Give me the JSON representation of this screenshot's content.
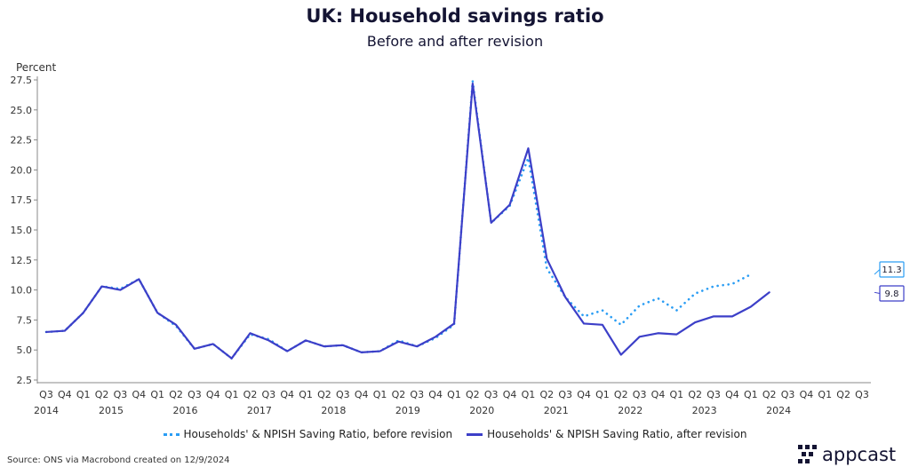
{
  "chart_data": {
    "type": "line",
    "title": "UK: Household savings ratio",
    "subtitle": "Before and after revision",
    "ylabel": "Percent",
    "ylim": [
      2.5,
      27.5
    ],
    "yticks": [
      2.5,
      5.0,
      7.5,
      10.0,
      12.5,
      15.0,
      17.5,
      20.0,
      22.5,
      25.0,
      27.5
    ],
    "quarter_labels": [
      "Q3",
      "Q4",
      "Q1",
      "Q2",
      "Q3",
      "Q4",
      "Q1",
      "Q2",
      "Q3",
      "Q4",
      "Q1",
      "Q2",
      "Q3",
      "Q4",
      "Q1",
      "Q2",
      "Q3",
      "Q4",
      "Q1",
      "Q2",
      "Q3",
      "Q4",
      "Q1",
      "Q2",
      "Q3",
      "Q4",
      "Q1",
      "Q2",
      "Q3",
      "Q4",
      "Q1",
      "Q2",
      "Q3",
      "Q4",
      "Q1",
      "Q2",
      "Q3",
      "Q4",
      "Q1",
      "Q2",
      "Q3",
      "Q4",
      "Q1",
      "Q2",
      "Q3"
    ],
    "year_labels": [
      {
        "label": "2014",
        "index": 0
      },
      {
        "label": "2015",
        "index": 3.5
      },
      {
        "label": "2016",
        "index": 7.5
      },
      {
        "label": "2017",
        "index": 11.5
      },
      {
        "label": "2018",
        "index": 15.5
      },
      {
        "label": "2019",
        "index": 19.5
      },
      {
        "label": "2020",
        "index": 23.5
      },
      {
        "label": "2021",
        "index": 27.5
      },
      {
        "label": "2022",
        "index": 31.5
      },
      {
        "label": "2023",
        "index": 35.5
      },
      {
        "label": "2024",
        "index": 39.5
      }
    ],
    "series": [
      {
        "name": "Households' & NPISH Saving Ratio, before revision",
        "color": "#2a9df4",
        "style": "dotted",
        "values": [
          6.5,
          6.6,
          8.1,
          10.3,
          10.1,
          10.9,
          8.1,
          7.0,
          5.1,
          5.5,
          4.3,
          6.3,
          5.9,
          4.9,
          5.8,
          5.3,
          5.4,
          4.8,
          4.9,
          5.8,
          5.3,
          6.0,
          7.1,
          27.4,
          15.6,
          17.0,
          21.0,
          11.8,
          9.4,
          7.8,
          8.3,
          7.1,
          8.7,
          9.3,
          8.3,
          9.7,
          10.3,
          10.5,
          11.3
        ]
      },
      {
        "name": "Households' & NPISH Saving Ratio, after revision",
        "color": "#3c3fc8",
        "style": "solid",
        "values": [
          6.5,
          6.6,
          8.1,
          10.3,
          10.0,
          10.9,
          8.1,
          7.1,
          5.1,
          5.5,
          4.3,
          6.4,
          5.8,
          4.9,
          5.8,
          5.3,
          5.4,
          4.8,
          4.9,
          5.7,
          5.3,
          6.1,
          7.2,
          27.2,
          15.6,
          17.1,
          21.8,
          12.6,
          9.4,
          7.2,
          7.1,
          4.6,
          6.1,
          6.4,
          6.3,
          7.3,
          7.8,
          7.8,
          8.6,
          9.8
        ]
      }
    ],
    "end_labels": [
      {
        "text": "11.3",
        "series": 0
      },
      {
        "text": "9.8",
        "series": 1
      }
    ],
    "grid": false,
    "legend_position": "bottom"
  },
  "source": "Source: ONS via Macrobond created on 12/9/2024",
  "logo": {
    "text": "appcast",
    "color": "#141433"
  }
}
